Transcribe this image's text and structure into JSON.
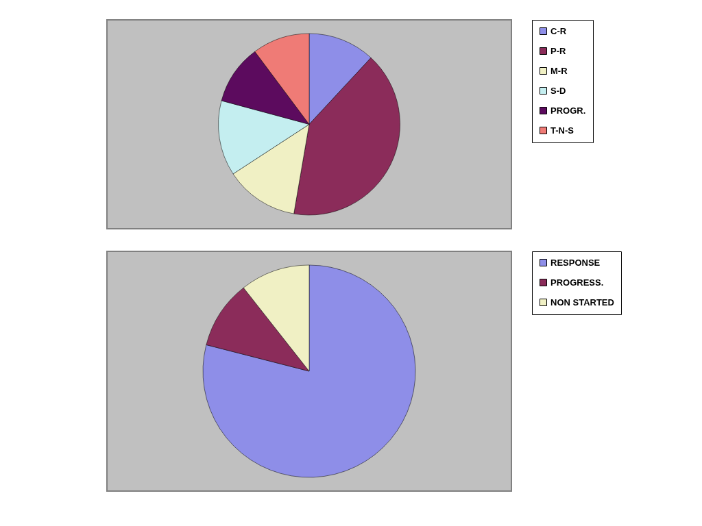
{
  "chart_data": [
    {
      "type": "pie",
      "categories": [
        "C-R",
        "P-R",
        "M-R",
        "S-D",
        "PROGR.",
        "T-N-S"
      ],
      "values": [
        11.9,
        40.8,
        13.1,
        13.4,
        10.6,
        10.2
      ],
      "colors": [
        "#8e8ee8",
        "#8b2c5a",
        "#f0f0c4",
        "#c4eef0",
        "#5c0b5e",
        "#ef7b76"
      ],
      "legend": "right"
    },
    {
      "type": "pie",
      "categories": [
        "RESPONSE",
        "PROGRESS.",
        "NON STARTED"
      ],
      "values": [
        79,
        10.4,
        10.6
      ],
      "colors": [
        "#8e8ee8",
        "#8b2c5a",
        "#f0f0c4"
      ],
      "legend": "right"
    }
  ]
}
